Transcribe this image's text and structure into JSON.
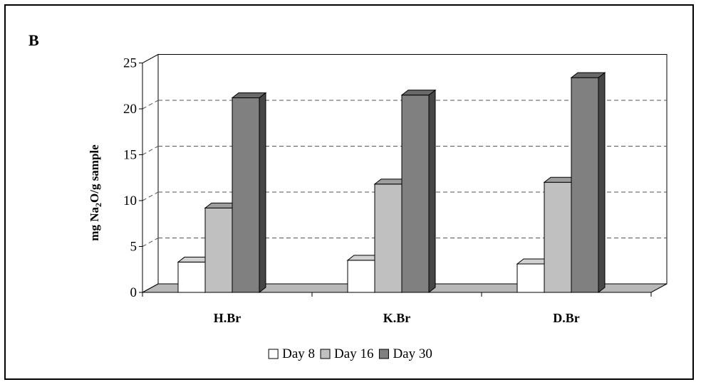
{
  "panel_label": "B",
  "chart_data": {
    "type": "bar",
    "categories": [
      "H.Br",
      "K.Br",
      "D.Br"
    ],
    "series": [
      {
        "name": "Day 8",
        "values": [
          3.3,
          3.5,
          3.1
        ]
      },
      {
        "name": "Day 16",
        "values": [
          9.2,
          11.8,
          12.0
        ]
      },
      {
        "name": "Day 30",
        "values": [
          21.2,
          21.5,
          23.4
        ]
      }
    ],
    "ylabel": "mg Na2O/g sample",
    "ylim": [
      0,
      25
    ],
    "yticks": [
      0,
      5,
      10,
      15,
      20,
      25
    ],
    "grid": true,
    "legend": "bottom"
  },
  "colors": {
    "Day 8": "#ffffff",
    "Day 16": "#c0c0c0",
    "Day 30": "#808080",
    "floor": "#b8b8b8",
    "grid": "#555555"
  }
}
